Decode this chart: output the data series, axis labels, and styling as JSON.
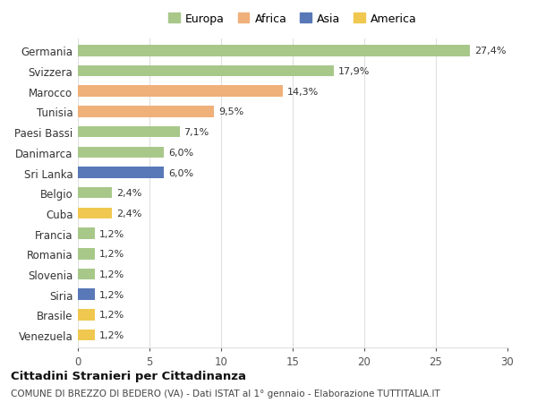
{
  "countries": [
    "Germania",
    "Svizzera",
    "Marocco",
    "Tunisia",
    "Paesi Bassi",
    "Danimarca",
    "Sri Lanka",
    "Belgio",
    "Cuba",
    "Francia",
    "Romania",
    "Slovenia",
    "Siria",
    "Brasile",
    "Venezuela"
  ],
  "values": [
    27.4,
    17.9,
    14.3,
    9.5,
    7.1,
    6.0,
    6.0,
    2.4,
    2.4,
    1.2,
    1.2,
    1.2,
    1.2,
    1.2,
    1.2
  ],
  "labels": [
    "27,4%",
    "17,9%",
    "14,3%",
    "9,5%",
    "7,1%",
    "6,0%",
    "6,0%",
    "2,4%",
    "2,4%",
    "1,2%",
    "1,2%",
    "1,2%",
    "1,2%",
    "1,2%",
    "1,2%"
  ],
  "continents": [
    "Europa",
    "Europa",
    "Africa",
    "Africa",
    "Europa",
    "Europa",
    "Asia",
    "Europa",
    "America",
    "Europa",
    "Europa",
    "Europa",
    "Asia",
    "America",
    "America"
  ],
  "colors": {
    "Europa": "#a8c88a",
    "Africa": "#f0b07a",
    "Asia": "#5878b8",
    "America": "#f0c850"
  },
  "legend_order": [
    "Europa",
    "Africa",
    "Asia",
    "America"
  ],
  "xlim": [
    0,
    30
  ],
  "xticks": [
    0,
    5,
    10,
    15,
    20,
    25,
    30
  ],
  "title": "Cittadini Stranieri per Cittadinanza",
  "subtitle": "COMUNE DI BREZZO DI BEDERO (VA) - Dati ISTAT al 1° gennaio - Elaborazione TUTTITALIA.IT",
  "bg_color": "#ffffff",
  "grid_color": "#e0e0e0",
  "bar_height": 0.55,
  "label_fontsize": 8,
  "ytick_fontsize": 8.5,
  "xtick_fontsize": 8.5,
  "legend_fontsize": 9,
  "title_fontsize": 9.5,
  "subtitle_fontsize": 7.5
}
